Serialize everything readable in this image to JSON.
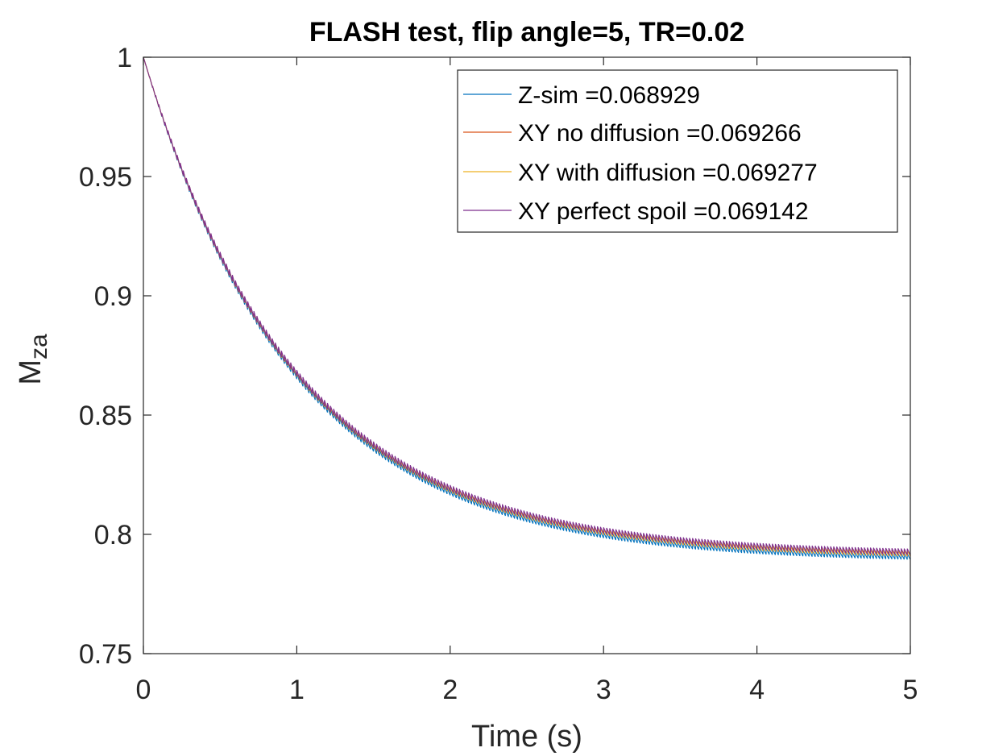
{
  "chart_data": {
    "type": "line",
    "title": "FLASH test, flip angle=5, TR=0.02",
    "xlabel": "Time (s)",
    "ylabel_main": "M",
    "ylabel_sub": "za",
    "xlim": [
      0,
      5
    ],
    "ylim": [
      0.75,
      1
    ],
    "xticks": [
      0,
      1,
      2,
      3,
      4,
      5
    ],
    "xtick_labels": [
      "0",
      "1",
      "2",
      "3",
      "4",
      "5"
    ],
    "yticks": [
      0.75,
      0.8,
      0.85,
      0.9,
      0.95,
      1
    ],
    "ytick_labels": [
      "0.75",
      "0.8",
      "0.85",
      "0.9",
      "0.95",
      "1"
    ],
    "legend_position": "top-right",
    "model": {
      "start": 1.0,
      "tau": 1.0,
      "tr": 0.02
    },
    "series": [
      {
        "name": "Z-sim =0.068929",
        "color": "#0072BD",
        "steady_state": 0.7905,
        "ripple": 0.0025
      },
      {
        "name": "XY no diffusion =0.069266",
        "color": "#D95319",
        "steady_state": 0.7918,
        "ripple": 0.0024
      },
      {
        "name": "XY with diffusion =0.069277",
        "color": "#EDB120",
        "steady_state": 0.7919,
        "ripple": 0.0024
      },
      {
        "name": "XY perfect spoil =0.069142",
        "color": "#7E2F8E",
        "steady_state": 0.7926,
        "ripple": 0.0026
      }
    ]
  }
}
